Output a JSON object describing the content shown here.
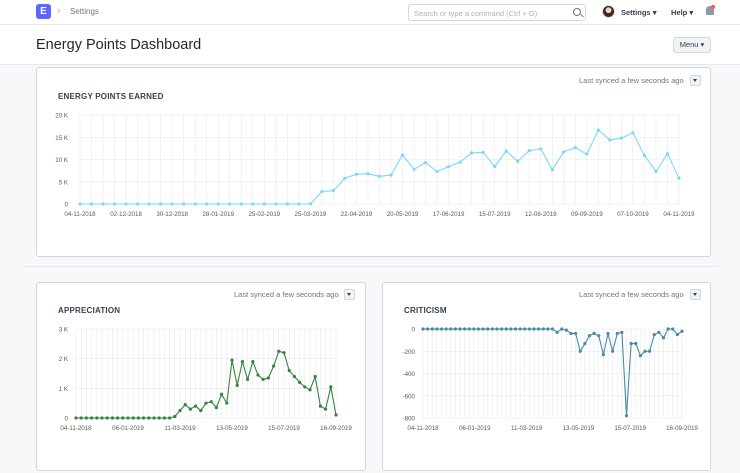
{
  "navbar": {
    "logo_letter": "E",
    "breadcrumb": "Settings",
    "search_placeholder": "Search or type a command (Ctrl + G)",
    "settings_label": "Settings",
    "help_label": "Help"
  },
  "page": {
    "title": "Energy Points Dashboard",
    "menu_label": "Menu"
  },
  "cards": {
    "earned": {
      "title": "ENERGY POINTS EARNED",
      "sync": "Last synced a few seconds ago"
    },
    "appreciation": {
      "title": "APPRECIATION",
      "sync": "Last synced a few seconds ago"
    },
    "criticism": {
      "title": "CRITICISM",
      "sync": "Last synced a few seconds ago"
    }
  },
  "chart_data": [
    {
      "type": "line",
      "title": "ENERGY POINTS EARNED",
      "color": "#7cd6fd",
      "yticks": [
        0,
        5000,
        10000,
        15000,
        20000
      ],
      "ytick_labels": [
        "0",
        "5 K",
        "10 K",
        "15 K",
        "20 K"
      ],
      "ylim": [
        0,
        20000
      ],
      "xtick_labels": [
        "04-11-2018",
        "02-12-2018",
        "30-12-2018",
        "28-01-2019",
        "25-02-2019",
        "25-03-2019",
        "22-04-2019",
        "20-05-2019",
        "17-06-2019",
        "15-07-2019",
        "12-08-2019",
        "09-09-2019",
        "07-10-2019",
        "04-11-2019"
      ],
      "values": [
        0,
        0,
        0,
        0,
        0,
        0,
        0,
        0,
        0,
        0,
        0,
        0,
        0,
        0,
        0,
        0,
        0,
        0,
        0,
        0,
        0,
        2800,
        3000,
        5800,
        6700,
        6800,
        6200,
        6500,
        11000,
        7800,
        9300,
        7300,
        8400,
        9400,
        11500,
        11600,
        8400,
        11900,
        9600,
        12000,
        12400,
        7700,
        11700,
        12700,
        11200,
        16600,
        14400,
        14800,
        16000,
        10900,
        7300,
        11300,
        5800
      ]
    },
    {
      "type": "line",
      "title": "APPRECIATION",
      "color": "#38833b",
      "yticks": [
        0,
        1000,
        2000,
        3000
      ],
      "ytick_labels": [
        "0",
        "1 K",
        "2 K",
        "3 K"
      ],
      "ylim": [
        0,
        3000
      ],
      "xtick_labels": [
        "04-11-2018",
        "06-01-2019",
        "11-03-2019",
        "13-05-2019",
        "15-07-2019",
        "16-09-2019"
      ],
      "values": [
        0,
        0,
        0,
        0,
        0,
        0,
        0,
        0,
        0,
        0,
        0,
        0,
        0,
        0,
        0,
        0,
        0,
        0,
        0,
        50,
        250,
        450,
        300,
        400,
        250,
        500,
        550,
        350,
        800,
        500,
        1950,
        1100,
        1900,
        1300,
        1900,
        1450,
        1300,
        1350,
        1750,
        2250,
        2200,
        1600,
        1400,
        1200,
        1050,
        950,
        1400,
        400,
        300,
        1050,
        100
      ]
    },
    {
      "type": "line",
      "title": "CRITICISM",
      "color": "#4a89a8",
      "yticks": [
        0,
        -200,
        -400,
        -600,
        -800
      ],
      "ytick_labels": [
        "0",
        "-200",
        "-400",
        "-600",
        "-800"
      ],
      "ylim": [
        -800,
        0
      ],
      "xtick_labels": [
        "04-11-2018",
        "06-01-2019",
        "11-03-2019",
        "13-05-2019",
        "15-07-2019",
        "16-09-2019"
      ],
      "values": [
        0,
        0,
        0,
        0,
        0,
        0,
        0,
        0,
        0,
        0,
        0,
        0,
        0,
        0,
        0,
        0,
        0,
        0,
        0,
        0,
        0,
        0,
        0,
        0,
        0,
        0,
        0,
        0,
        0,
        -30,
        0,
        -10,
        -40,
        -40,
        -200,
        -130,
        -60,
        -40,
        -60,
        -230,
        -40,
        -200,
        -40,
        -30,
        -780,
        -130,
        -130,
        -240,
        -200,
        -200,
        -50,
        -30,
        -80,
        0,
        0,
        -50,
        -20
      ]
    }
  ]
}
